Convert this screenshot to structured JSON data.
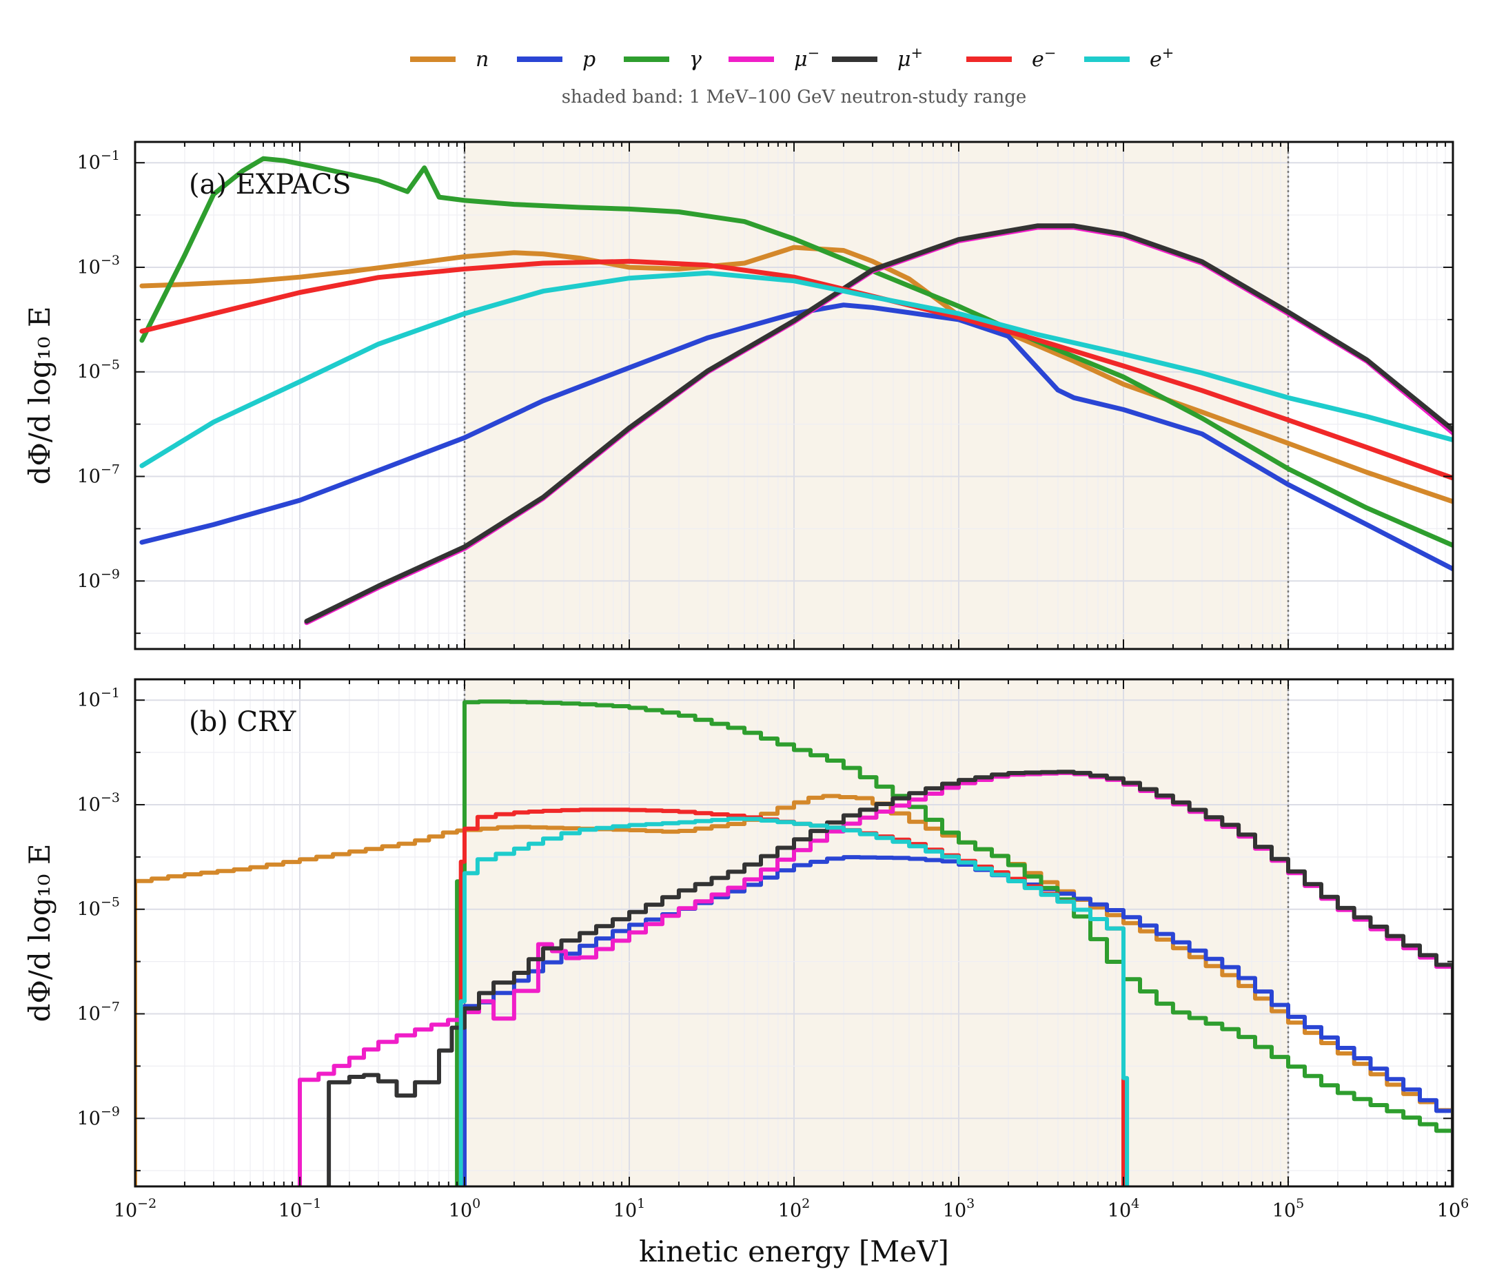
{
  "legend": {
    "items": [
      {
        "key": "n",
        "label": "n",
        "sup": "",
        "color": "#d4882a"
      },
      {
        "key": "p",
        "label": "p",
        "sup": "",
        "color": "#2a45d4"
      },
      {
        "key": "g",
        "label": "γ",
        "sup": "",
        "color": "#2e9e2e"
      },
      {
        "key": "mum",
        "label": "μ",
        "sup": "−",
        "color": "#f01ec8"
      },
      {
        "key": "mup",
        "label": "μ",
        "sup": "+",
        "color": "#333333"
      },
      {
        "key": "em",
        "label": "e",
        "sup": "−",
        "color": "#f02828"
      },
      {
        "key": "ep",
        "label": "e",
        "sup": "+",
        "color": "#1ecccc"
      }
    ],
    "note": "shaded band: 1 MeV–100 GeV neutron-study range"
  },
  "chart_data": [
    {
      "type": "line",
      "panel_label": "(a) EXPACS",
      "ylabel": "dΦ/d log₁₀ E",
      "x_scale": "log",
      "y_scale": "log",
      "xlim": [
        0.01,
        1000000
      ],
      "ylim": [
        5e-11,
        0.25
      ],
      "shaded_band": [
        1,
        100000
      ],
      "grid": true,
      "x_ticks": [
        {
          "base": "10",
          "exp": "−2"
        },
        {
          "base": "10",
          "exp": "−1"
        },
        {
          "base": "10",
          "exp": "0"
        },
        {
          "base": "10",
          "exp": "1"
        },
        {
          "base": "10",
          "exp": "2"
        },
        {
          "base": "10",
          "exp": "3"
        },
        {
          "base": "10",
          "exp": "4"
        },
        {
          "base": "10",
          "exp": "5"
        },
        {
          "base": "10",
          "exp": "6"
        }
      ],
      "y_ticks": [
        {
          "base": "10",
          "exp": "−1",
          "value": 0.1
        },
        {
          "base": "10",
          "exp": "−3",
          "value": 0.001
        },
        {
          "base": "10",
          "exp": "−5",
          "value": 1e-05
        },
        {
          "base": "10",
          "exp": "−7",
          "value": 1e-07
        },
        {
          "base": "10",
          "exp": "−9",
          "value": 1e-09
        }
      ],
      "series": [
        {
          "key": "n",
          "x": [
            0.011,
            0.02,
            0.05,
            0.1,
            0.2,
            0.5,
            1,
            2,
            3,
            5,
            10,
            20,
            50,
            100,
            200,
            300,
            500,
            1000,
            2000,
            5000,
            10000,
            30000,
            100000,
            300000,
            1000000
          ],
          "y": [
            0.00044,
            0.00047,
            0.00054,
            0.00065,
            0.00083,
            0.0012,
            0.0016,
            0.0019,
            0.0018,
            0.0015,
            0.001,
            0.00093,
            0.0012,
            0.0024,
            0.0021,
            0.0013,
            0.0006,
            0.00012,
            5.5e-05,
            1.6e-05,
            5.8e-06,
            1.7e-06,
            4.3e-07,
            1.2e-07,
            3.3e-08
          ]
        },
        {
          "key": "p",
          "x": [
            0.011,
            0.03,
            0.1,
            0.3,
            1,
            3,
            10,
            30,
            100,
            200,
            300,
            1000,
            2000,
            3000,
            4000,
            5000,
            10000,
            30000,
            100000,
            300000,
            1000000
          ],
          "y": [
            5.5e-09,
            1.2e-08,
            3.5e-08,
            1.3e-07,
            5.5e-07,
            2.8e-06,
            1.2e-05,
            4.5e-05,
            0.00013,
            0.00019,
            0.00017,
            0.0001,
            4.8e-05,
            1.2e-05,
            4.5e-06,
            3.2e-06,
            1.9e-06,
            6.5e-07,
            7e-08,
            1.2e-08,
            1.7e-09
          ]
        },
        {
          "key": "g",
          "x": [
            0.011,
            0.02,
            0.03,
            0.045,
            0.06,
            0.08,
            0.12,
            0.2,
            0.3,
            0.45,
            0.57,
            0.7,
            1,
            2,
            5,
            10,
            20,
            50,
            100,
            300,
            1000,
            3000,
            10000,
            30000,
            100000,
            300000,
            1000000
          ],
          "y": [
            4e-05,
            0.0017,
            0.025,
            0.07,
            0.12,
            0.11,
            0.085,
            0.06,
            0.045,
            0.028,
            0.08,
            0.022,
            0.019,
            0.016,
            0.014,
            0.013,
            0.0115,
            0.0075,
            0.0035,
            0.00085,
            0.00018,
            3.8e-05,
            8e-06,
            1.3e-06,
            1.4e-07,
            2.5e-08,
            4.8e-09
          ]
        },
        {
          "key": "mum",
          "x": [
            0.11,
            0.3,
            1,
            3,
            10,
            30,
            100,
            300,
            1000,
            3000,
            5000,
            10000,
            30000,
            100000,
            300000,
            1000000
          ],
          "y": [
            1.6e-10,
            7.5e-10,
            4.2e-09,
            3.8e-08,
            8e-07,
            1e-05,
            9e-05,
            0.00085,
            0.0032,
            0.0058,
            0.0058,
            0.004,
            0.0012,
            0.00013,
            1.6e-05,
            6.8e-07
          ]
        },
        {
          "key": "mup",
          "x": [
            0.11,
            0.3,
            1,
            3,
            10,
            30,
            100,
            300,
            1000,
            3000,
            5000,
            10000,
            30000,
            100000,
            300000,
            1000000
          ],
          "y": [
            1.7e-10,
            8e-10,
            4.5e-09,
            4e-08,
            8.5e-07,
            1.05e-05,
            9.5e-05,
            0.0009,
            0.0034,
            0.0062,
            0.0062,
            0.0043,
            0.00128,
            0.00014,
            1.7e-05,
            7.8e-07
          ]
        },
        {
          "key": "em",
          "x": [
            0.011,
            0.03,
            0.1,
            0.3,
            1,
            3,
            10,
            30,
            100,
            300,
            1000,
            3000,
            10000,
            30000,
            100000,
            300000,
            1000000
          ],
          "y": [
            6e-05,
            0.00013,
            0.00033,
            0.00064,
            0.00093,
            0.0012,
            0.0013,
            0.0011,
            0.00065,
            0.00028,
            0.00011,
            4.1e-05,
            1.3e-05,
            4.4e-06,
            1.2e-06,
            3.6e-07,
            9.3e-08
          ]
        },
        {
          "key": "ep",
          "x": [
            0.011,
            0.03,
            0.1,
            0.3,
            1,
            3,
            10,
            30,
            100,
            300,
            1000,
            3000,
            10000,
            30000,
            100000,
            300000,
            1000000
          ],
          "y": [
            1.6e-07,
            1.1e-06,
            6.5e-06,
            3.4e-05,
            0.00013,
            0.00035,
            0.00062,
            0.00078,
            0.00055,
            0.00027,
            0.00013,
            5.2e-05,
            2.2e-05,
            9.5e-06,
            3.2e-06,
            1.4e-06,
            5e-07
          ]
        }
      ]
    },
    {
      "type": "line",
      "panel_label": "(b) CRY",
      "ylabel": "dΦ/d log₁₀ E",
      "xlabel": "kinetic energy [MeV]",
      "x_scale": "log",
      "y_scale": "log",
      "xlim": [
        0.01,
        1000000
      ],
      "ylim": [
        5e-11,
        0.25
      ],
      "shaded_band": [
        1,
        100000
      ],
      "grid": true,
      "step": true,
      "x_ticks": [
        {
          "base": "10",
          "exp": "−2"
        },
        {
          "base": "10",
          "exp": "−1"
        },
        {
          "base": "10",
          "exp": "0"
        },
        {
          "base": "10",
          "exp": "1"
        },
        {
          "base": "10",
          "exp": "2"
        },
        {
          "base": "10",
          "exp": "3"
        },
        {
          "base": "10",
          "exp": "4"
        },
        {
          "base": "10",
          "exp": "5"
        },
        {
          "base": "10",
          "exp": "6"
        }
      ],
      "y_ticks": [
        {
          "base": "10",
          "exp": "−1",
          "value": 0.1
        },
        {
          "base": "10",
          "exp": "−3",
          "value": 0.001
        },
        {
          "base": "10",
          "exp": "−5",
          "value": 1e-05
        },
        {
          "base": "10",
          "exp": "−7",
          "value": 1e-07
        },
        {
          "base": "10",
          "exp": "−9",
          "value": 1e-09
        }
      ],
      "series": [
        {
          "key": "n",
          "x": [
            0.01,
            0.02,
            0.05,
            0.1,
            0.2,
            0.5,
            0.9,
            1,
            2,
            5,
            10,
            20,
            50,
            100,
            150,
            300,
            500,
            1000,
            2000,
            5000,
            10000,
            20000,
            50000,
            100000,
            200000,
            500000,
            1000000
          ],
          "y": [
            3.3e-05,
            4.5e-05,
            6e-05,
            8.5e-05,
            0.00012,
            0.00019,
            0.00032,
            0.00032,
            0.00038,
            0.00035,
            0.00033,
            0.0003,
            0.00045,
            0.001,
            0.0015,
            0.0013,
            0.00055,
            0.00022,
            9e-05,
            1.8e-05,
            6.5e-06,
            2.2e-06,
            4.5e-07,
            8.5e-08,
            2.2e-08,
            3.5e-09,
            1.2e-09
          ]
        },
        {
          "key": "p",
          "x": [
            1,
            1.5,
            2,
            3,
            5,
            10,
            20,
            50,
            100,
            200,
            500,
            1000,
            2000,
            5000,
            10000,
            20000,
            50000,
            100000,
            200000,
            500000,
            1000000
          ],
          "y": [
            1.3e-07,
            1.8e-07,
            3.5e-07,
            8e-07,
            1.7e-06,
            4.5e-06,
            9e-06,
            2.5e-05,
            6.5e-05,
            0.0001,
            9.5e-05,
            8e-05,
            4e-05,
            1.8e-05,
            8.5e-06,
            2.8e-06,
            6.5e-07,
            1.1e-07,
            2.8e-08,
            4.5e-09,
            1.1e-09
          ]
        },
        {
          "key": "g",
          "x": [
            0.9,
            1,
            1.5,
            3,
            5,
            10,
            20,
            50,
            100,
            200,
            500,
            1000,
            2000,
            5000,
            10000,
            20000,
            50000,
            100000,
            200000,
            500000,
            1000000
          ],
          "y": [
            1.3e-08,
            0.09,
            0.095,
            0.09,
            0.085,
            0.075,
            0.055,
            0.027,
            0.0125,
            0.0062,
            0.0012,
            0.00022,
            9e-05,
            1.2e-05,
            6e-07,
            1.2e-07,
            4.5e-08,
            1.2e-08,
            3.5e-09,
            1.2e-09,
            5e-10
          ]
        },
        {
          "key": "mum",
          "x": [
            0.1,
            0.13,
            0.2,
            0.3,
            0.5,
            1,
            1.5,
            2,
            2.8,
            5,
            10,
            20,
            50,
            100,
            200,
            500,
            1000,
            2000,
            5000,
            10000,
            20000,
            50000,
            100000,
            200000,
            500000,
            1000000
          ],
          "y": [
            5e-09,
            6e-09,
            1.2e-08,
            2.5e-08,
            4.5e-08,
            8.5e-08,
            2.2e-07,
            3e-08,
            2.5e-06,
            1e-06,
            3e-06,
            9e-06,
            3e-05,
            0.00011,
            0.00038,
            0.0011,
            0.0024,
            0.0037,
            0.0041,
            0.0028,
            0.0012,
            0.00032,
            6.5e-05,
            1.2e-05,
            2.2e-06,
            6.5e-07
          ]
        },
        {
          "key": "mup",
          "x": [
            0.15,
            0.2,
            0.3,
            0.5,
            0.7,
            1,
            1.5,
            2,
            3,
            5,
            10,
            20,
            50,
            100,
            200,
            500,
            1000,
            2000,
            5000,
            10000,
            20000,
            50000,
            100000,
            200000,
            500000,
            1000000
          ],
          "y": [
            4e-09,
            6e-09,
            7e-09,
            2e-09,
            1.2e-08,
            9e-08,
            3.5e-07,
            4.5e-07,
            1.5e-06,
            3e-06,
            7.5e-06,
            2e-05,
            6e-05,
            0.00018,
            0.00055,
            0.0015,
            0.0028,
            0.004,
            0.0043,
            0.003,
            0.0013,
            0.00035,
            7e-05,
            1.3e-05,
            2.5e-06,
            7e-07
          ]
        },
        {
          "key": "em",
          "x": [
            0.95,
            1,
            1.2,
            2,
            3,
            5,
            10,
            20,
            50,
            100,
            200,
            500,
            1000,
            2000,
            5000,
            10000
          ],
          "y": [
            3e-05,
            0.00022,
            0.00055,
            0.0007,
            0.00075,
            0.0008,
            0.0008,
            0.00075,
            0.0006,
            0.00045,
            0.00035,
            0.0002,
            9.5e-05,
            4.5e-05,
            1.2e-05,
            3.5e-06
          ]
        },
        {
          "key": "ep",
          "x": [
            0.95,
            1,
            1.2,
            2,
            3,
            5,
            10,
            20,
            50,
            100,
            200,
            500,
            1000,
            2000,
            5000,
            10000,
            10500
          ],
          "y": [
            1e-09,
            3e-05,
            8e-05,
            0.00013,
            0.0002,
            0.00032,
            0.0004,
            0.00045,
            0.00055,
            0.00045,
            0.00035,
            0.00018,
            9e-05,
            4e-05,
            1.2e-05,
            3.5e-06,
            1e-11
          ]
        }
      ]
    }
  ]
}
